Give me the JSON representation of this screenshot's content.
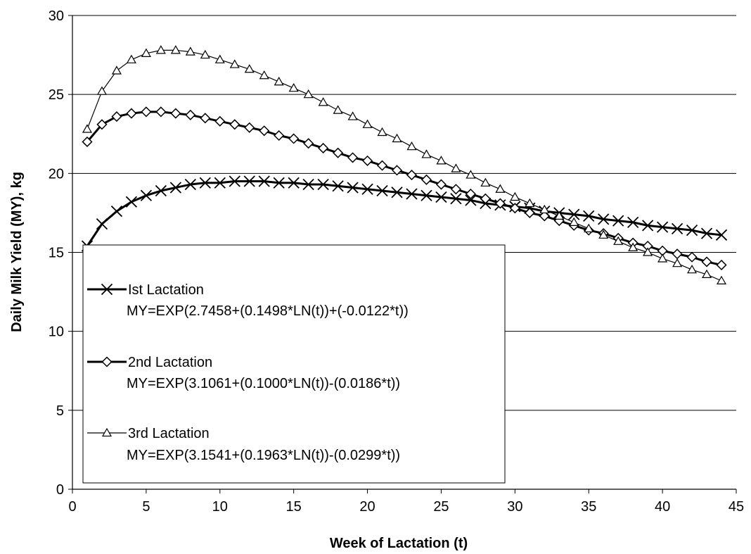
{
  "chart_data": {
    "type": "line",
    "title": "",
    "xlabel": "Week of Lactation (t)",
    "ylabel": "Daily Milk Yield (MY), kg",
    "xlim": [
      0,
      45
    ],
    "ylim": [
      0,
      30
    ],
    "xticks": [
      0,
      5,
      10,
      15,
      20,
      25,
      30,
      35,
      40,
      45
    ],
    "yticks": [
      0,
      5,
      10,
      15,
      20,
      25,
      30
    ],
    "grid": "horizontal",
    "legend_position": "bottom-left",
    "x": [
      1,
      2,
      3,
      4,
      5,
      6,
      7,
      8,
      9,
      10,
      11,
      12,
      13,
      14,
      15,
      16,
      17,
      18,
      19,
      20,
      21,
      22,
      23,
      24,
      25,
      26,
      27,
      28,
      29,
      30,
      31,
      32,
      33,
      34,
      35,
      36,
      37,
      38,
      39,
      40,
      41,
      42,
      43,
      44
    ],
    "series": [
      {
        "name": "Ist Lactation",
        "equation": "MY=EXP(2.7458+(0.1498*LN(t))+(-0.0122*t))",
        "marker": "x",
        "values": [
          15.4,
          16.8,
          17.6,
          18.2,
          18.6,
          18.9,
          19.1,
          19.3,
          19.4,
          19.4,
          19.5,
          19.5,
          19.5,
          19.4,
          19.4,
          19.3,
          19.3,
          19.2,
          19.1,
          19.0,
          18.9,
          18.8,
          18.7,
          18.6,
          18.5,
          18.4,
          18.3,
          18.1,
          18.0,
          17.9,
          17.8,
          17.6,
          17.5,
          17.4,
          17.3,
          17.1,
          17.0,
          16.9,
          16.7,
          16.6,
          16.5,
          16.4,
          16.2,
          16.1
        ]
      },
      {
        "name": "2nd Lactation",
        "equation": "MY=EXP(3.1061+(0.1000*LN(t))-(0.0186*t))",
        "marker": "diamond",
        "values": [
          22.0,
          23.1,
          23.6,
          23.8,
          23.9,
          23.9,
          23.8,
          23.7,
          23.5,
          23.3,
          23.1,
          22.9,
          22.7,
          22.4,
          22.2,
          21.9,
          21.6,
          21.3,
          21.0,
          20.8,
          20.5,
          20.2,
          19.9,
          19.6,
          19.3,
          19.0,
          18.7,
          18.4,
          18.1,
          17.8,
          17.5,
          17.3,
          17.0,
          16.7,
          16.4,
          16.2,
          15.9,
          15.6,
          15.4,
          15.1,
          14.9,
          14.7,
          14.4,
          14.2
        ]
      },
      {
        "name": "3rd Lactation",
        "equation": "MY=EXP(3.1541+(0.1963*LN(t))-(0.0299*t))",
        "marker": "triangle",
        "values": [
          22.8,
          25.2,
          26.5,
          27.2,
          27.6,
          27.8,
          27.8,
          27.7,
          27.5,
          27.2,
          26.9,
          26.6,
          26.2,
          25.8,
          25.4,
          25.0,
          24.5,
          24.0,
          23.6,
          23.1,
          22.6,
          22.2,
          21.7,
          21.2,
          20.8,
          20.3,
          19.9,
          19.4,
          19.0,
          18.5,
          18.1,
          17.7,
          17.3,
          16.9,
          16.5,
          16.1,
          15.7,
          15.3,
          15.0,
          14.6,
          14.3,
          13.9,
          13.6,
          13.2
        ]
      }
    ]
  }
}
